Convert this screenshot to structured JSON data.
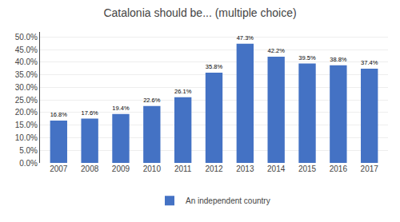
{
  "chart_data": {
    "type": "bar",
    "title": "Catalonia should be... (multiple choice)",
    "categories": [
      "2007",
      "2008",
      "2009",
      "2010",
      "2011",
      "2012",
      "2013",
      "2014",
      "2015",
      "2016",
      "2017"
    ],
    "series": [
      {
        "name": "An independent country",
        "color": "#4472C4",
        "values": [
          16.8,
          17.6,
          19.4,
          22.6,
          26.1,
          35.8,
          47.3,
          42.2,
          39.5,
          38.8,
          37.4
        ],
        "value_labels": [
          "16.8%",
          "17.6%",
          "19.4%",
          "22.6%",
          "26.1%",
          "35.8%",
          "47.3%",
          "42.2%",
          "39.5%",
          "38.8%",
          "37.4%"
        ]
      }
    ],
    "ylim": [
      0,
      52
    ],
    "yticks": [
      {
        "value": 0,
        "label": "0.0%"
      },
      {
        "value": 5.0,
        "label": "5.0%"
      },
      {
        "value": 10.0,
        "label": "10.0%"
      },
      {
        "value": 15.0,
        "label": "15.0%"
      },
      {
        "value": 20.0,
        "label": "20.0%"
      },
      {
        "value": 25.0,
        "label": "25.0%"
      },
      {
        "value": 30.0,
        "label": "30.0%"
      },
      {
        "value": 35.0,
        "label": "35.0%"
      },
      {
        "value": 40.0,
        "label": "40.0%"
      },
      {
        "value": 45.0,
        "label": "45.0%"
      },
      {
        "value": 50.0,
        "label": "50.0%"
      }
    ],
    "grid": true,
    "legend": "bottom",
    "data_labels": true
  }
}
